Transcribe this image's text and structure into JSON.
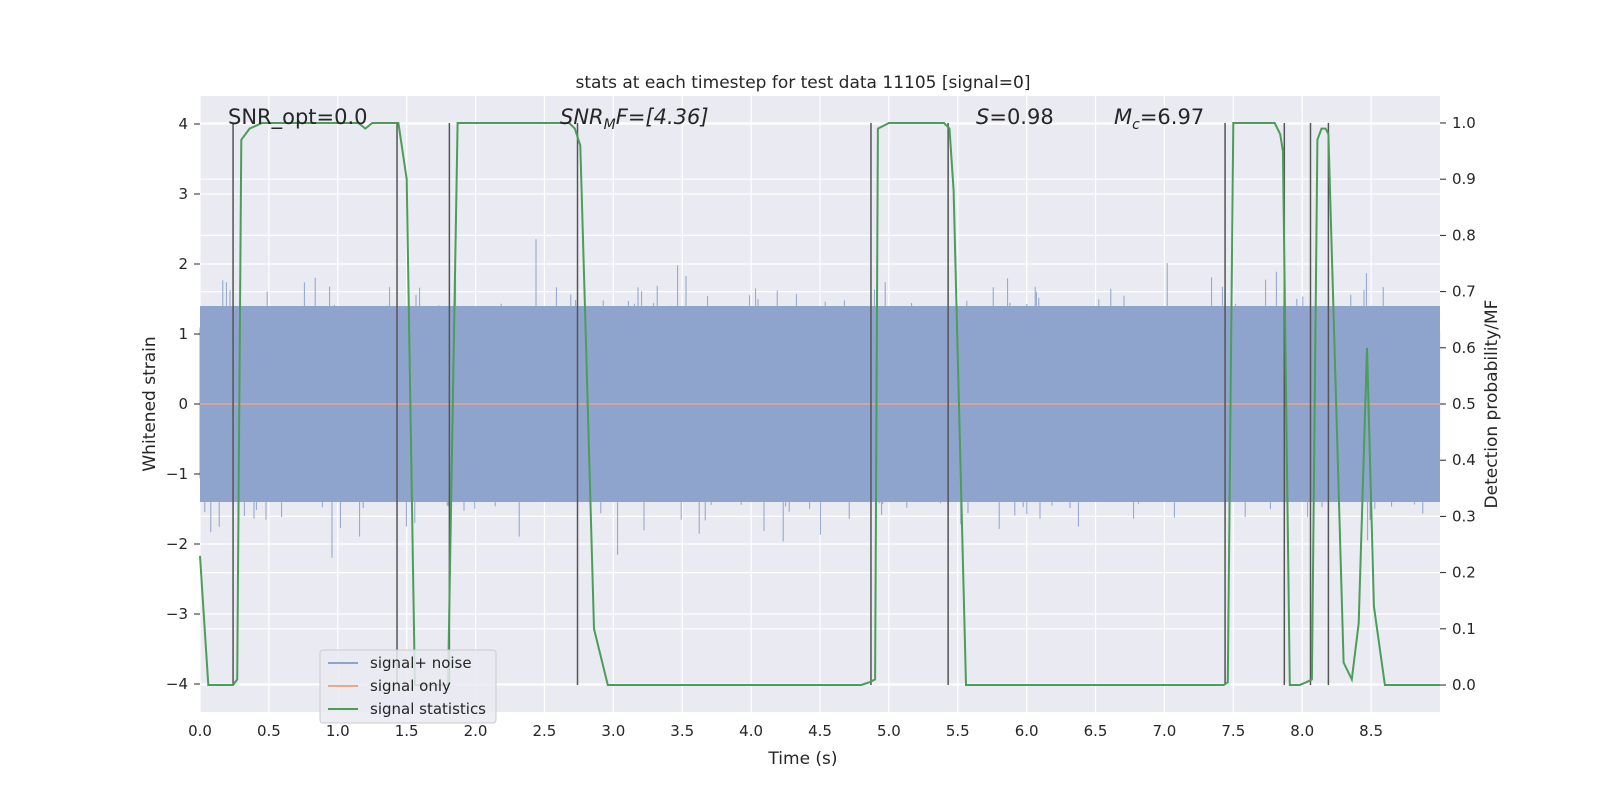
{
  "chart_data": {
    "type": "line",
    "title": "stats at each timestep for test data 11105 [signal=0]",
    "xlabel": "Time (s)",
    "ylabel": "Whitened strain",
    "ylabel_right": "Detection probability/MF",
    "xlim": [
      0,
      9.0
    ],
    "ylim": [
      -4.4,
      4.4
    ],
    "ylim_right": [
      -0.048,
      1.048
    ],
    "x_ticks": [
      0.0,
      0.5,
      1.0,
      1.5,
      2.0,
      2.5,
      3.0,
      3.5,
      4.0,
      4.5,
      5.0,
      5.5,
      6.0,
      6.5,
      7.0,
      7.5,
      8.0,
      8.5
    ],
    "y_ticks": [
      -4,
      -3,
      -2,
      -1,
      0,
      1,
      2,
      3,
      4
    ],
    "y_ticks_right": [
      0.0,
      0.1,
      0.2,
      0.3,
      0.4,
      0.5,
      0.6,
      0.7,
      0.8,
      0.9,
      1.0
    ],
    "grid": true,
    "legend_position": "lower-left",
    "annotations": {
      "snr_opt": "SNR_opt=0.0",
      "snr_mf_base": "SNR",
      "snr_mf_sub": "M",
      "snr_mf_rest": "F=[4.36]",
      "s_sym": "S",
      "s_val": "=0.98",
      "mc_sym": "M",
      "mc_sub": "c",
      "mc_val": "=6.97"
    },
    "series": [
      {
        "name": "signal+ noise",
        "color": "#8fa4cc",
        "axis": "left",
        "description": "whitened strain noise, samples in approx [-4, 4]"
      },
      {
        "name": "signal only",
        "color": "#e8a88a",
        "axis": "left",
        "x": [
          0,
          9.0
        ],
        "y": [
          0,
          0
        ]
      },
      {
        "name": "signal statistics",
        "color": "#4a9e57",
        "axis": "right",
        "x": [
          0.0,
          0.06,
          0.24,
          0.27,
          0.3,
          0.36,
          0.45,
          1.0,
          1.15,
          1.2,
          1.25,
          1.44,
          1.5,
          1.56,
          1.8,
          1.87,
          2.5,
          2.68,
          2.72,
          2.76,
          2.8,
          2.86,
          2.96,
          4.8,
          4.86,
          4.9,
          4.92,
          5.0,
          5.4,
          5.44,
          5.47,
          5.56,
          5.62,
          7.43,
          7.46,
          7.5,
          7.8,
          7.84,
          7.86,
          7.91,
          7.98,
          8.03,
          8.07,
          8.11,
          8.14,
          8.17,
          8.19,
          8.3,
          8.36,
          8.41,
          8.47,
          8.52,
          8.6,
          9.0
        ],
        "y": [
          0.23,
          0.0,
          0.0,
          0.01,
          0.97,
          0.99,
          1.0,
          1.0,
          1.0,
          0.99,
          1.0,
          1.0,
          0.9,
          0.0,
          0.0,
          1.0,
          1.0,
          1.0,
          0.99,
          0.96,
          0.62,
          0.1,
          0.0,
          0.0,
          0.005,
          0.01,
          0.99,
          1.0,
          1.0,
          0.99,
          0.88,
          0.0,
          0.0,
          0.0,
          0.005,
          1.0,
          1.0,
          0.98,
          0.95,
          0.0,
          0.0,
          0.005,
          0.01,
          0.97,
          0.99,
          0.99,
          0.98,
          0.04,
          0.01,
          0.11,
          0.6,
          0.14,
          0.0,
          0.0
        ]
      }
    ],
    "event_lines_x": [
      0.24,
      1.43,
      1.81,
      2.74,
      4.87,
      5.43,
      7.44,
      7.87,
      8.06,
      8.19
    ]
  }
}
